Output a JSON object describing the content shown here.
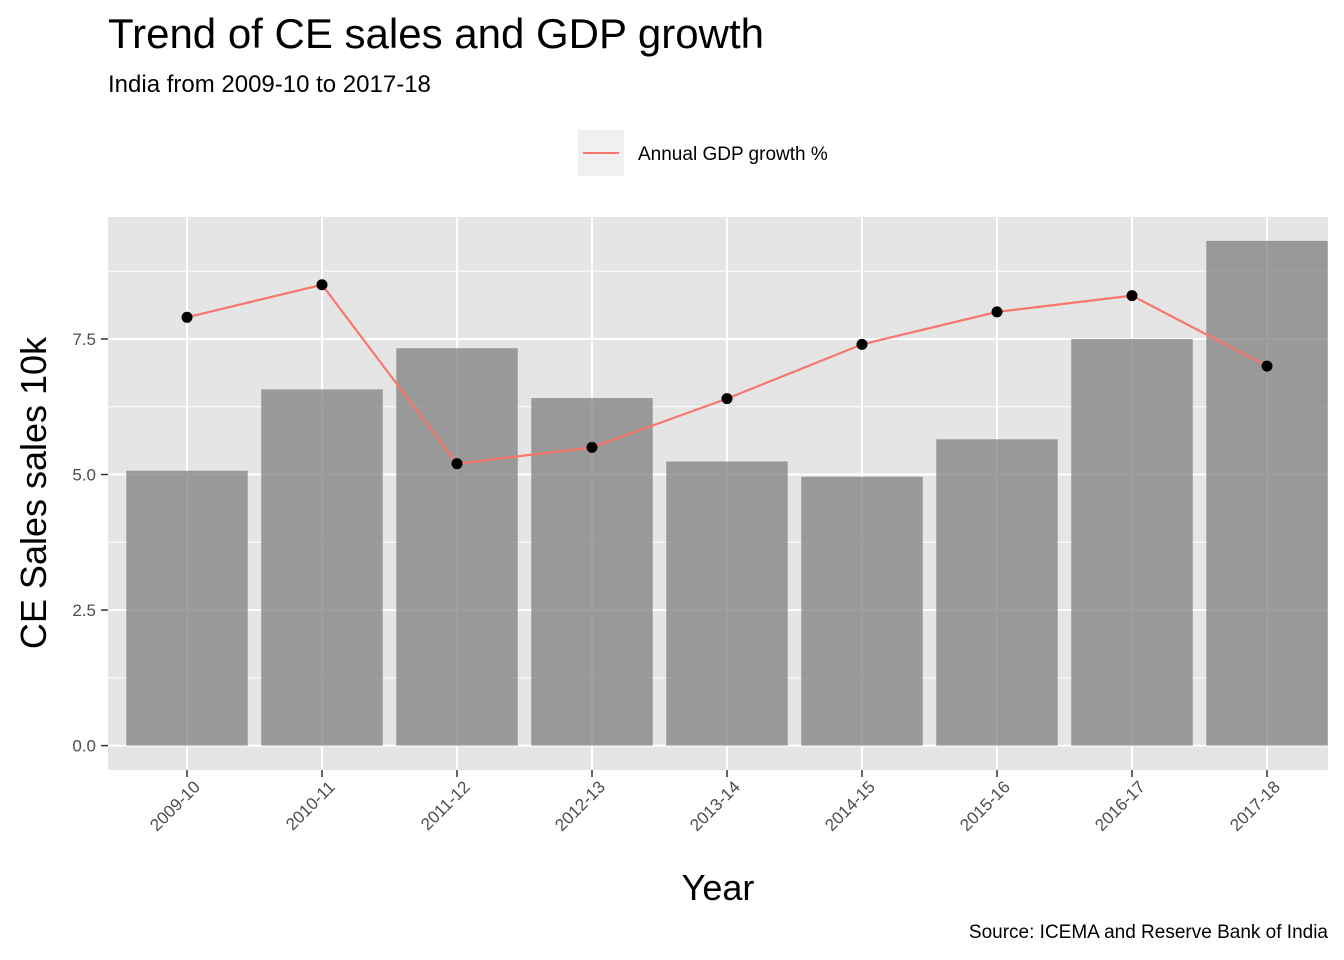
{
  "title": "Trend of CE sales and GDP growth",
  "subtitle": "India from 2009-10 to 2017-18",
  "caption": "Source: ICEMA and Reserve Bank of India",
  "colors": {
    "panel_bg": "#e5e5e5",
    "grid": "#ffffff",
    "bar_fill": "#999999",
    "line": "#f8766d",
    "point": "#000000"
  },
  "chart_data": {
    "type": "bar",
    "categories": [
      "2009-10",
      "2010-11",
      "2011-12",
      "2012-13",
      "2013-14",
      "2014-15",
      "2015-16",
      "2016-17",
      "2017-18"
    ],
    "bars": {
      "values": [
        5.07,
        6.57,
        7.33,
        6.41,
        5.24,
        4.96,
        5.65,
        7.5,
        9.31
      ]
    },
    "series": [
      {
        "name": "Annual GDP growth %",
        "type": "line",
        "values": [
          7.9,
          8.5,
          5.2,
          5.5,
          6.4,
          7.4,
          8.0,
          8.3,
          7.0
        ]
      }
    ],
    "xlabel": "Year",
    "ylabel": "CE Sales sales 10k",
    "ylim": [
      -0.45,
      9.75
    ],
    "yticks": [
      "0.0",
      "2.5",
      "5.0",
      "7.5"
    ],
    "grid": true,
    "legend_position": "top"
  }
}
